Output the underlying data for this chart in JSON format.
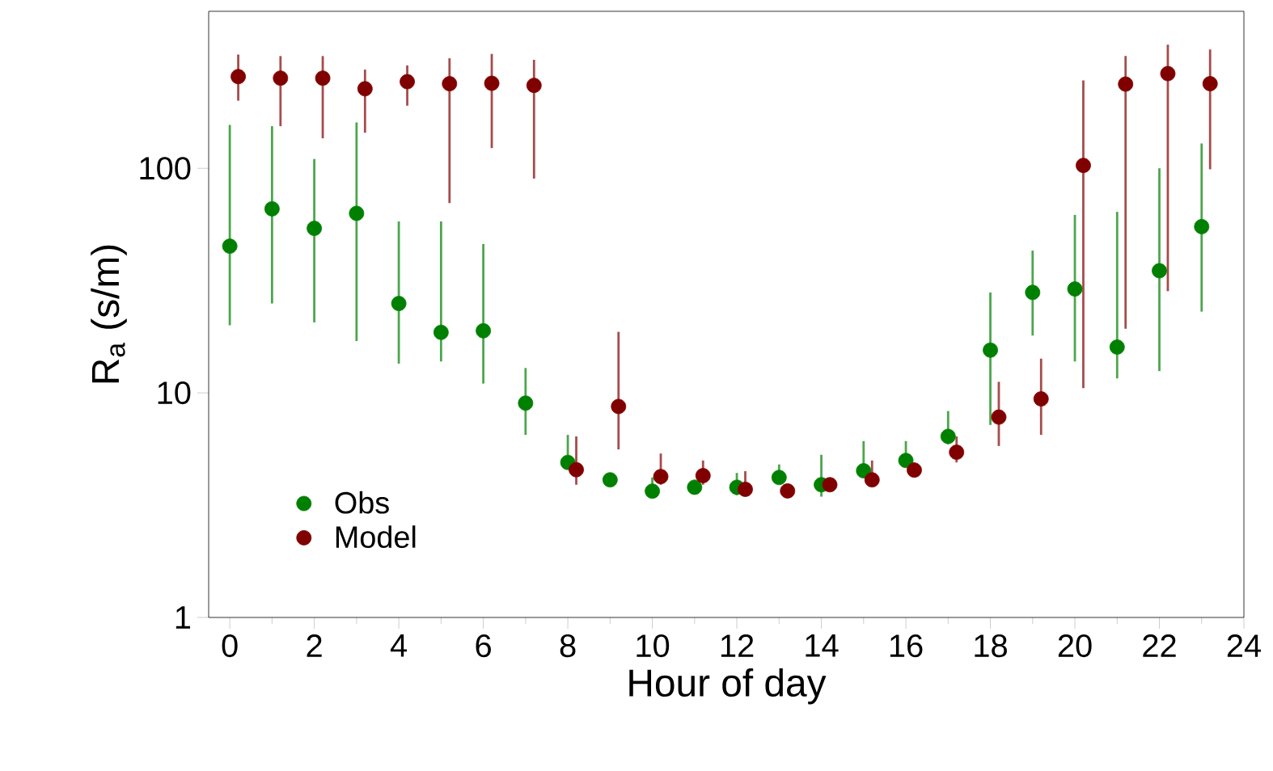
{
  "chart_data": {
    "type": "scatter",
    "xlabel": "Hour of day",
    "ylabel": "R$_{a}$ (s/m)",
    "log": "y",
    "xlim": [
      -0.5,
      24
    ],
    "ylim": [
      1,
      500
    ],
    "xticks": [
      0,
      {
        "value": 1,
        "label": null
      },
      2,
      {
        "value": 3,
        "label": null
      },
      4,
      {
        "value": 5,
        "label": null
      },
      6,
      {
        "value": 7,
        "label": null
      },
      8,
      {
        "value": 9,
        "label": null
      },
      10,
      {
        "value": 11,
        "label": null
      },
      12,
      {
        "value": 13,
        "label": null
      },
      14,
      {
        "value": 15,
        "label": null
      },
      16,
      {
        "value": 17,
        "label": null
      },
      18,
      {
        "value": 19,
        "label": null
      },
      20,
      {
        "value": 21,
        "label": null
      },
      22,
      {
        "value": 23,
        "label": null
      },
      24
    ],
    "yticks": [
      1,
      10,
      100
    ],
    "marker": "circle",
    "legend": "bottom left",
    "grid": false,
    "series": [
      {
        "name": "Obs",
        "color": "#008000",
        "x": [
          0,
          1,
          2,
          3,
          4,
          5,
          6,
          7,
          8,
          9,
          10,
          11,
          12,
          13,
          14,
          15,
          16,
          17,
          18,
          19,
          20,
          21,
          22,
          23
        ],
        "values": [
          45,
          66,
          54,
          63,
          25,
          18.6,
          18.9,
          9,
          4.9,
          4.1,
          3.65,
          3.8,
          3.8,
          4.2,
          3.9,
          4.5,
          5.0,
          6.4,
          15.5,
          28,
          29,
          16,
          35,
          55
        ],
        "errors": [
          [
            20,
            156
          ],
          [
            25,
            154
          ],
          [
            20.6,
            110
          ],
          [
            17,
            160
          ],
          [
            13.5,
            58
          ],
          [
            13.8,
            58
          ],
          [
            11,
            46
          ],
          [
            6.5,
            12.9
          ],
          [
            4.6,
            6.5
          ],
          null,
          [
            3.5,
            4.2
          ],
          [
            3.6,
            4.1
          ],
          [
            3.5,
            4.4
          ],
          [
            4.0,
            4.8
          ],
          [
            3.45,
            5.3
          ],
          [
            4.3,
            6.1
          ],
          [
            4.7,
            6.1
          ],
          [
            5.9,
            8.3
          ],
          [
            7.2,
            28
          ],
          [
            18,
            43
          ],
          [
            13.8,
            62
          ],
          [
            11.6,
            64
          ],
          [
            12.5,
            100
          ],
          [
            23,
            129
          ]
        ]
      },
      {
        "name": "Model",
        "color": "#800000",
        "x": [
          0.2,
          1.2,
          2.2,
          3.2,
          4.2,
          5.2,
          6.2,
          7.2,
          8.2,
          9.2,
          10.2,
          11.2,
          12.2,
          13.2,
          14.2,
          15.2,
          16.2,
          17.2,
          18.2,
          19.2,
          20.2,
          21.2,
          22.2,
          23.2
        ],
        "values": [
          256,
          252,
          252,
          226,
          243,
          238,
          239,
          234,
          4.55,
          8.7,
          4.24,
          4.28,
          3.72,
          3.66,
          3.9,
          4.1,
          4.53,
          5.44,
          7.8,
          9.4,
          103,
          237,
          264,
          238
        ],
        "errors": [
          [
            200,
            321
          ],
          [
            154,
            316
          ],
          [
            136,
            316
          ],
          [
            144,
            275
          ],
          [
            190,
            287
          ],
          [
            70,
            309
          ],
          [
            123,
            323
          ],
          [
            90,
            304
          ],
          [
            3.9,
            6.4
          ],
          [
            5.6,
            18.7
          ],
          [
            3.9,
            5.37
          ],
          [
            3.9,
            5.0
          ],
          [
            3.5,
            4.48
          ],
          null,
          null,
          [
            3.9,
            5.0
          ],
          [
            4.3,
            4.9
          ],
          [
            4.9,
            6.4
          ],
          [
            5.8,
            11.2
          ],
          [
            6.5,
            14.2
          ],
          [
            10.5,
            246
          ],
          [
            19.3,
            316
          ],
          [
            28.4,
            355
          ],
          [
            99,
            338
          ]
        ]
      }
    ]
  }
}
